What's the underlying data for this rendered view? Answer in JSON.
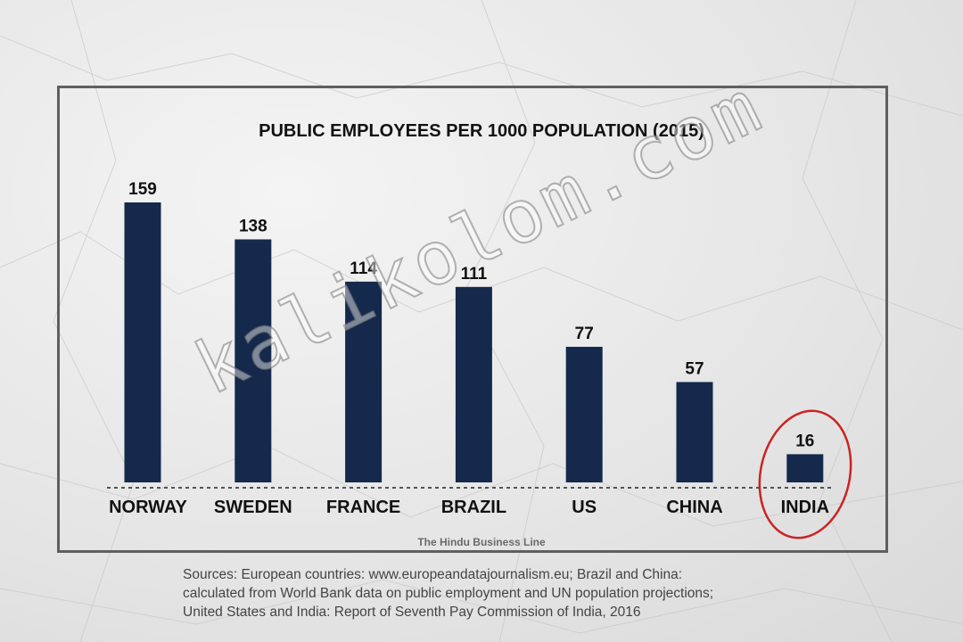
{
  "chart_data": {
    "type": "bar",
    "title": "PUBLIC EMPLOYEES PER 1000 POPULATION (2015)",
    "categories": [
      "NORWAY",
      "SWEDEN",
      "FRANCE",
      "BRAZIL",
      "US",
      "CHINA",
      "INDIA"
    ],
    "values": [
      159,
      138,
      114,
      111,
      77,
      57,
      16
    ],
    "data_labels": [
      "159",
      "138",
      "114",
      "111",
      "77",
      "57",
      "16"
    ],
    "xlabel": "",
    "ylabel": "",
    "ylim": [
      0,
      159
    ],
    "grid": false,
    "axis_visible": false,
    "bar_color": "#14294b",
    "highlight": {
      "category": "INDIA",
      "style": "red circle",
      "color": "#cc2222"
    }
  },
  "credit": "The Hindu Business Line",
  "sources": [
    "Sources: European countries: www.europeandatajournalism.eu; Brazil and China:",
    "calculated from World Bank data on public employment and UN population projections;",
    "United States and India: Report of Seventh Pay Commission of India, 2016"
  ],
  "watermark": "kalikolom.com"
}
